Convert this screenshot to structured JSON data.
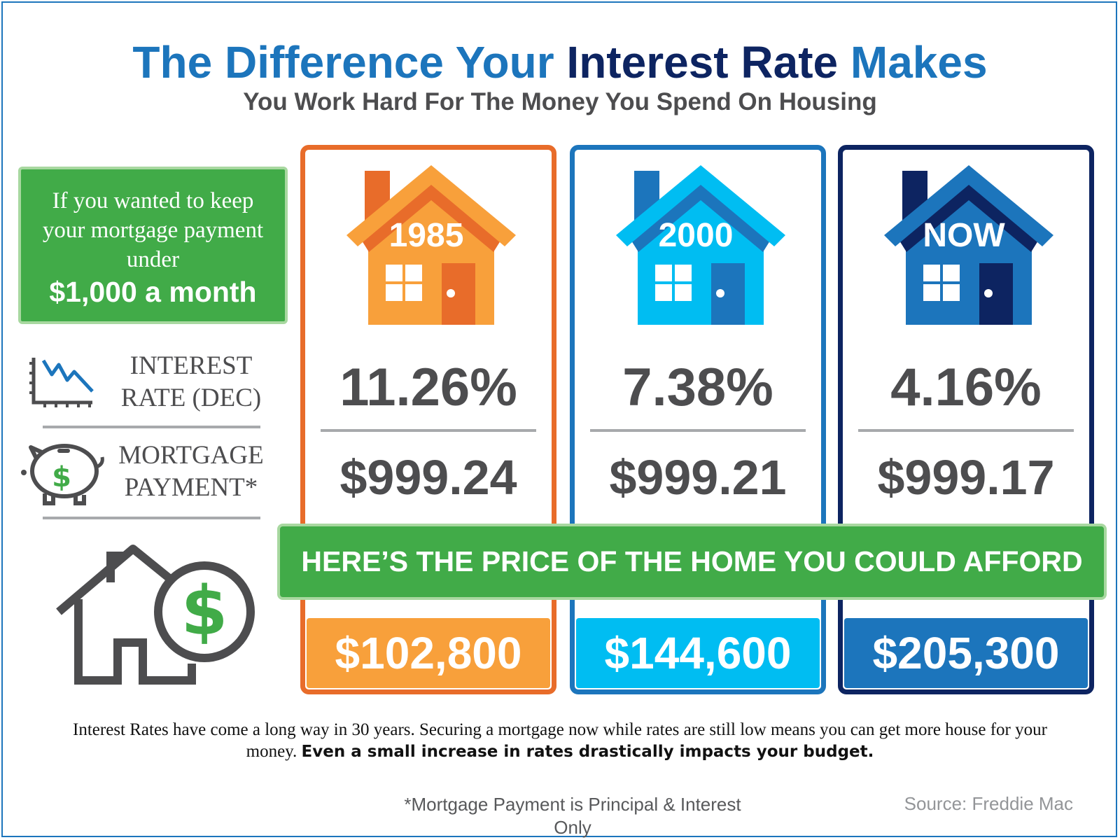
{
  "header": {
    "title_parts": [
      "The Difference Your ",
      "Interest Rate",
      " Makes"
    ],
    "subtitle": "You Work Hard For The Money You Spend On Housing"
  },
  "left_panel": {
    "lead": "If you wanted to keep your mortgage payment under",
    "amount": "$1,000 a month",
    "rate_label": "INTEREST RATE (DEC)",
    "payment_label": "MORTGAGE PAYMENT*"
  },
  "columns": [
    {
      "year": "1985",
      "rate": "11.26%",
      "payment": "$999.24",
      "price": "$102,800"
    },
    {
      "year": "2000",
      "rate": "7.38%",
      "payment": "$999.21",
      "price": "$144,600"
    },
    {
      "year": "NOW",
      "rate": "4.16%",
      "payment": "$999.17",
      "price": "$205,300"
    }
  ],
  "banner": "HERE’S THE PRICE OF THE HOME YOU COULD AFFORD",
  "footer": {
    "text": "Interest Rates have come a long way in 30 years. Securing a mortgage now while rates are still low means you can get more house for your money.",
    "emphasis": "Even a small increase in rates drastically impacts your budget.",
    "footnote": "*Mortgage Payment is Principal & Interest Only",
    "source": "Source: Freddie Mac"
  }
}
